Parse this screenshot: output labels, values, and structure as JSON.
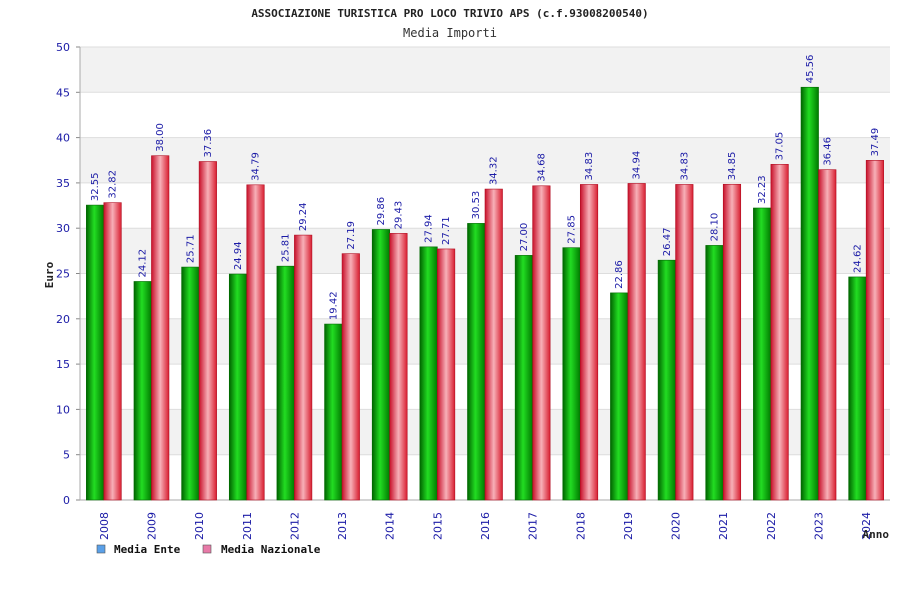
{
  "chart_data": {
    "type": "bar",
    "title": "ASSOCIAZIONE TURISTICA PRO LOCO TRIVIO APS (c.f.93008200540)",
    "subtitle": "Media Importi",
    "ylabel": "Euro",
    "xlabel": "Anno",
    "ylim": [
      0,
      50
    ],
    "yticks": [
      "0",
      "5",
      "10",
      "15",
      "20",
      "25",
      "30",
      "35",
      "40",
      "45",
      "50"
    ],
    "categories": [
      "2008",
      "2009",
      "2010",
      "2011",
      "2012",
      "2013",
      "2014",
      "2015",
      "2016",
      "2017",
      "2018",
      "2019",
      "2020",
      "2021",
      "2022",
      "2023",
      "2024"
    ],
    "series": [
      {
        "name": "Media Ente",
        "color": "#00a000",
        "values": [
          32.55,
          24.12,
          25.71,
          24.94,
          25.81,
          19.42,
          29.86,
          27.94,
          30.53,
          27.0,
          27.85,
          22.86,
          26.47,
          28.1,
          32.23,
          45.56,
          24.62
        ],
        "labels": [
          "32.55",
          "24.12",
          "25.71",
          "24.94",
          "25.81",
          "19.42",
          "29.86",
          "27.94",
          "30.53",
          "27.00",
          "27.85",
          "22.86",
          "26.47",
          "28.10",
          "32.23",
          "45.56",
          "24.62"
        ]
      },
      {
        "name": "Media Nazionale",
        "color": "#e8202e",
        "values": [
          32.82,
          38.0,
          37.36,
          34.79,
          29.24,
          27.19,
          29.43,
          27.71,
          34.32,
          34.68,
          34.83,
          34.94,
          34.83,
          34.85,
          37.05,
          36.46,
          37.49
        ],
        "labels": [
          "32.82",
          "38.00",
          "37.36",
          "34.79",
          "29.24",
          "27.19",
          "29.43",
          "27.71",
          "34.32",
          "34.68",
          "34.83",
          "34.94",
          "34.83",
          "34.85",
          "37.05",
          "36.46",
          "37.49"
        ]
      }
    ],
    "legend": [
      {
        "name": "Media Ente",
        "swatch": "#5aa0e8"
      },
      {
        "name": "Media Nazionale",
        "swatch": "#e87aa8"
      }
    ],
    "grid": true,
    "legend_position": "bottom-left"
  }
}
